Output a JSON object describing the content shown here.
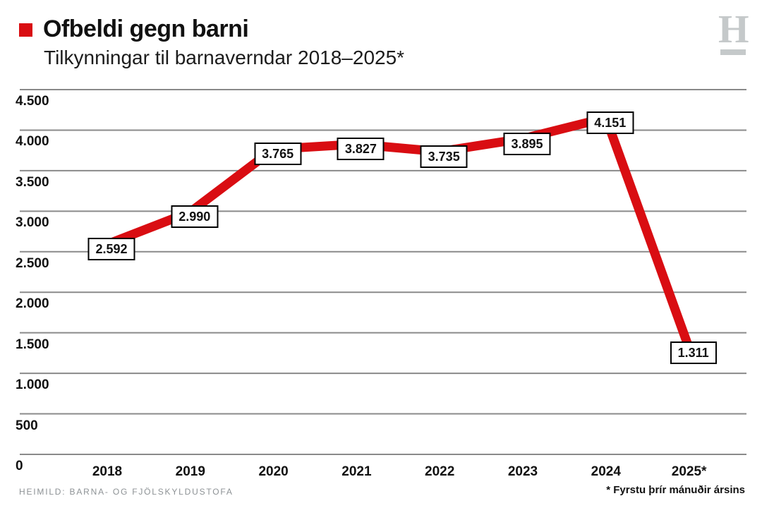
{
  "header": {
    "title": "Ofbeldi gegn barni",
    "subtitle": "Tilkynningar til barnaverndar 2018–2025*",
    "accent_color": "#d90d12"
  },
  "logo": {
    "letter": "H",
    "color": "#c5c9ca"
  },
  "chart_data": {
    "type": "line",
    "title": "Ofbeldi gegn barni",
    "subtitle": "Tilkynningar til barnaverndar 2018–2025*",
    "categories": [
      "2018",
      "2019",
      "2020",
      "2021",
      "2022",
      "2023",
      "2024",
      "2025*"
    ],
    "values": [
      2592,
      2990,
      3765,
      3827,
      3735,
      3895,
      4151,
      1311
    ],
    "value_labels": [
      "2.592",
      "2.990",
      "3.765",
      "3.827",
      "3.735",
      "3.895",
      "4.151",
      "1.311"
    ],
    "y_ticks": {
      "values": [
        0,
        500,
        1000,
        1500,
        2000,
        2500,
        3000,
        3500,
        4000,
        4500
      ],
      "labels": [
        "0",
        "500",
        "1.000",
        "1.500",
        "2.000",
        "2.500",
        "3.000",
        "3.500",
        "4.000",
        "4.500"
      ]
    },
    "ylim": [
      0,
      4500
    ],
    "grid": true,
    "legend": "none",
    "line_color": "#d90d12",
    "grid_color": "#8a8a8a"
  },
  "footer": {
    "source": "HEIMILD: BARNA- OG FJÖLSKYLDUSTOFA",
    "note": "* Fyrstu þrír mánuðir ársins"
  }
}
